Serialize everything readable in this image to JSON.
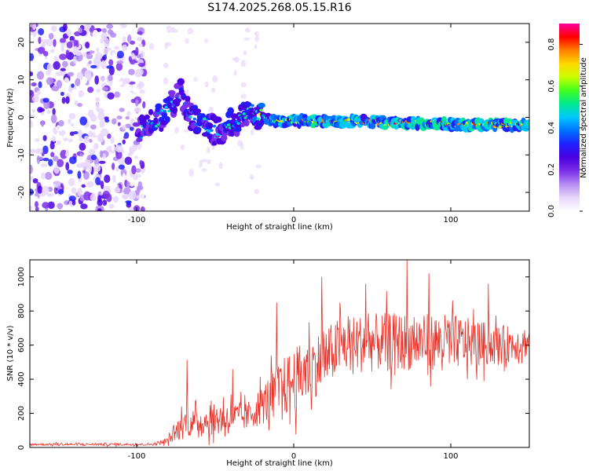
{
  "title": "S174.2025.268.05.15.R16",
  "colors": {
    "signal_line": "#e8332a",
    "frame": "#000000",
    "cmap": [
      "#ffffff",
      "#e8d8fb",
      "#b58cf2",
      "#7b2fe8",
      "#4b00e0",
      "#2020ff",
      "#0070ff",
      "#00c8ff",
      "#00e890",
      "#40ff20",
      "#c8ff00",
      "#ffd800",
      "#ff8000",
      "#ff0000",
      "#ff00a0"
    ]
  },
  "chart_data": [
    {
      "type": "heatmap",
      "title": "S174.2025.268.05.15.R16",
      "xlabel": "Height of straight line (km)",
      "ylabel": "Frequency (Hz)",
      "xlim": [
        -168,
        150
      ],
      "ylim": [
        -25,
        25
      ],
      "xticks": [
        -100,
        0,
        100
      ],
      "yticks": [
        -20,
        -10,
        0,
        10,
        20
      ],
      "colorbar": {
        "label": "Normalized spectral amplitude",
        "range": [
          0.0,
          0.9
        ],
        "ticks": [
          0.0,
          0.2,
          0.4,
          0.6,
          0.8
        ]
      },
      "noise_region_x": [
        -168,
        -95
      ],
      "ridge": [
        {
          "x": -100,
          "f": -5,
          "amp": 0.35
        },
        {
          "x": -92,
          "f": -2,
          "amp": 0.45
        },
        {
          "x": -85,
          "f": 0,
          "amp": 0.5
        },
        {
          "x": -78,
          "f": 3,
          "amp": 0.5
        },
        {
          "x": -72,
          "f": 7,
          "amp": 0.35
        },
        {
          "x": -66,
          "f": 0,
          "amp": 0.45
        },
        {
          "x": -58,
          "f": -1,
          "amp": 0.5
        },
        {
          "x": -50,
          "f": -4,
          "amp": 0.4
        },
        {
          "x": -42,
          "f": -2,
          "amp": 0.5
        },
        {
          "x": -35,
          "f": -1,
          "amp": 0.5
        },
        {
          "x": -27,
          "f": 2,
          "amp": 0.5
        },
        {
          "x": -20,
          "f": 0,
          "amp": 0.6
        },
        {
          "x": -10,
          "f": -1,
          "amp": 0.65
        },
        {
          "x": 0,
          "f": -1,
          "amp": 0.7
        },
        {
          "x": 15,
          "f": -1,
          "amp": 0.75
        },
        {
          "x": 30,
          "f": -1,
          "amp": 0.7
        },
        {
          "x": 45,
          "f": -1,
          "amp": 0.7
        },
        {
          "x": 60,
          "f": -1.5,
          "amp": 0.75
        },
        {
          "x": 75,
          "f": -1.5,
          "amp": 0.75
        },
        {
          "x": 90,
          "f": -1.5,
          "amp": 0.8
        },
        {
          "x": 105,
          "f": -2,
          "amp": 0.75
        },
        {
          "x": 120,
          "f": -2,
          "amp": 0.75
        },
        {
          "x": 135,
          "f": -2,
          "amp": 0.75
        },
        {
          "x": 150,
          "f": -2,
          "amp": 0.7
        }
      ]
    },
    {
      "type": "line",
      "title": "",
      "xlabel": "Height of straight line (km)",
      "ylabel": "SNR (10 * v/v)",
      "xlim": [
        -168,
        150
      ],
      "ylim": [
        0,
        1100
      ],
      "xticks": [
        -100,
        0,
        100
      ],
      "yticks": [
        0,
        200,
        400,
        600,
        800,
        1000
      ],
      "envelope": [
        {
          "x": -168,
          "base": 18,
          "spread": 15
        },
        {
          "x": -90,
          "base": 18,
          "spread": 15
        },
        {
          "x": -80,
          "base": 40,
          "spread": 40
        },
        {
          "x": -70,
          "base": 140,
          "spread": 200
        },
        {
          "x": -60,
          "base": 150,
          "spread": 160
        },
        {
          "x": -45,
          "base": 170,
          "spread": 230
        },
        {
          "x": -30,
          "base": 180,
          "spread": 180
        },
        {
          "x": -20,
          "base": 250,
          "spread": 260
        },
        {
          "x": -10,
          "base": 330,
          "spread": 380
        },
        {
          "x": 0,
          "base": 390,
          "spread": 420
        },
        {
          "x": 10,
          "base": 460,
          "spread": 420
        },
        {
          "x": 20,
          "base": 520,
          "spread": 400
        },
        {
          "x": 30,
          "base": 600,
          "spread": 380
        },
        {
          "x": 60,
          "base": 620,
          "spread": 380
        },
        {
          "x": 100,
          "base": 620,
          "spread": 360
        },
        {
          "x": 130,
          "base": 600,
          "spread": 260
        },
        {
          "x": 150,
          "base": 620,
          "spread": 200
        }
      ],
      "peaks": [
        {
          "x": -68,
          "y": 515
        },
        {
          "x": -39,
          "y": 460
        },
        {
          "x": -11,
          "y": 850
        },
        {
          "x": 18,
          "y": 1000
        },
        {
          "x": 46,
          "y": 960
        },
        {
          "x": 72,
          "y": 1100
        },
        {
          "x": 86,
          "y": 1020
        },
        {
          "x": 124,
          "y": 960
        }
      ]
    }
  ]
}
